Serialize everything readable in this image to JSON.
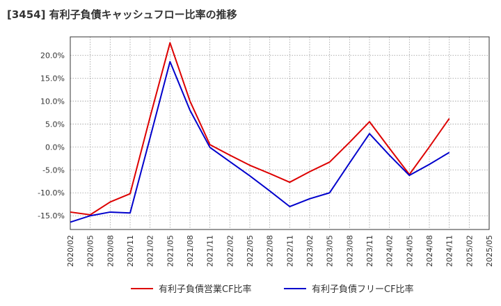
{
  "chart_data": {
    "type": "line",
    "title": "[3454]  有利子負債キャッシュフロー比率の推移",
    "xlabel": "",
    "ylabel": "",
    "x": [
      "2020/02",
      "2020/05",
      "2020/08",
      "2020/11",
      "2021/02",
      "2021/05",
      "2021/08",
      "2021/11",
      "2022/02",
      "2022/05",
      "2022/08",
      "2022/11",
      "2023/02",
      "2023/05",
      "2023/08",
      "2023/11",
      "2024/02",
      "2024/05",
      "2024/08",
      "2024/11",
      "2025/02",
      "2025/05"
    ],
    "ylim": [
      -18,
      24
    ],
    "yticks": [
      -15,
      -10,
      -5,
      0,
      5,
      10,
      15,
      20
    ],
    "ytick_labels": [
      "-15.0%",
      "-10.0%",
      "-5.0%",
      "0.0%",
      "5.0%",
      "10.0%",
      "15.0%",
      "20.0%"
    ],
    "grid": true,
    "legend_position": "bottom",
    "series": [
      {
        "name": "有利子負債営業CF比率",
        "color": "#dd0000",
        "values": [
          -14.2,
          -14.8,
          -12.0,
          -10.2,
          6.5,
          22.7,
          10.0,
          0.5,
          -1.8,
          -4.0,
          -5.8,
          -7.7,
          -5.4,
          -3.3,
          1.0,
          5.5,
          -0.3,
          -6.0,
          0.0,
          6.2,
          null,
          null
        ]
      },
      {
        "name": "有利子負債フリーCF比率",
        "color": "#0000cc",
        "values": [
          -16.4,
          -15.0,
          -14.2,
          -14.4,
          2.0,
          18.6,
          8.0,
          -0.1,
          -3.2,
          -6.3,
          -9.6,
          -13.0,
          -11.3,
          -10.0,
          -3.5,
          2.9,
          -1.8,
          -6.2,
          -3.8,
          -1.2,
          null,
          null
        ]
      }
    ]
  }
}
